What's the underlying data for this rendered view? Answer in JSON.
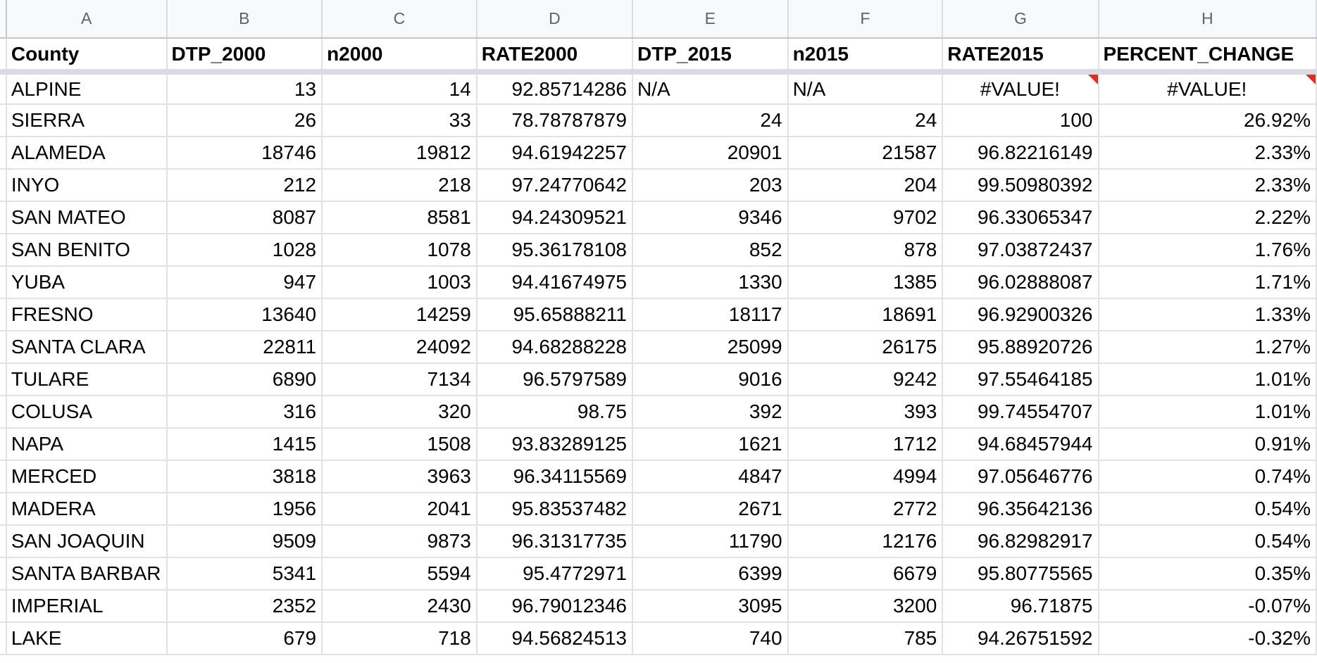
{
  "column_letters": [
    "A",
    "B",
    "C",
    "D",
    "E",
    "F",
    "G",
    "H"
  ],
  "headers": [
    "County",
    "DTP_2000",
    "n2000",
    "RATE2000",
    "DTP_2015",
    "n2015",
    "RATE2015",
    "PERCENT_CHANGE"
  ],
  "rows": [
    [
      "ALPINE",
      "13",
      "14",
      "92.85714286",
      "N/A",
      "N/A",
      "#VALUE!",
      "#VALUE!"
    ],
    [
      "SIERRA",
      "26",
      "33",
      "78.78787879",
      "24",
      "24",
      "100",
      "26.92%"
    ],
    [
      "ALAMEDA",
      "18746",
      "19812",
      "94.61942257",
      "20901",
      "21587",
      "96.82216149",
      "2.33%"
    ],
    [
      "INYO",
      "212",
      "218",
      "97.24770642",
      "203",
      "204",
      "99.50980392",
      "2.33%"
    ],
    [
      "SAN MATEO",
      "8087",
      "8581",
      "94.24309521",
      "9346",
      "9702",
      "96.33065347",
      "2.22%"
    ],
    [
      "SAN BENITO",
      "1028",
      "1078",
      "95.36178108",
      "852",
      "878",
      "97.03872437",
      "1.76%"
    ],
    [
      "YUBA",
      "947",
      "1003",
      "94.41674975",
      "1330",
      "1385",
      "96.02888087",
      "1.71%"
    ],
    [
      "FRESNO",
      "13640",
      "14259",
      "95.65888211",
      "18117",
      "18691",
      "96.92900326",
      "1.33%"
    ],
    [
      "SANTA CLARA",
      "22811",
      "24092",
      "94.68288228",
      "25099",
      "26175",
      "95.88920726",
      "1.27%"
    ],
    [
      "TULARE",
      "6890",
      "7134",
      "96.5797589",
      "9016",
      "9242",
      "97.55464185",
      "1.01%"
    ],
    [
      "COLUSA",
      "316",
      "320",
      "98.75",
      "392",
      "393",
      "99.74554707",
      "1.01%"
    ],
    [
      "NAPA",
      "1415",
      "1508",
      "93.83289125",
      "1621",
      "1712",
      "94.68457944",
      "0.91%"
    ],
    [
      "MERCED",
      "3818",
      "3963",
      "96.34115569",
      "4847",
      "4994",
      "97.05646776",
      "0.74%"
    ],
    [
      "MADERA",
      "1956",
      "2041",
      "95.83537482",
      "2671",
      "2772",
      "96.35642136",
      "0.54%"
    ],
    [
      "SAN JOAQUIN",
      "9509",
      "9873",
      "96.31317735",
      "11790",
      "12176",
      "96.82982917",
      "0.54%"
    ],
    [
      "SANTA BARBAR",
      "5341",
      "5594",
      "95.4772971",
      "6399",
      "6679",
      "95.80775565",
      "0.35%"
    ],
    [
      "IMPERIAL",
      "2352",
      "2430",
      "96.79012346",
      "3095",
      "3200",
      "96.71875",
      "-0.07%"
    ],
    [
      "LAKE",
      "679",
      "718",
      "94.56824513",
      "740",
      "785",
      "94.26751592",
      "-0.32%"
    ]
  ],
  "colors": {
    "header_bg": "#f8f9fa",
    "grid_line": "#e2e2e2",
    "frozen_divider": "#d8dce1",
    "error_flag": "#d93025"
  }
}
